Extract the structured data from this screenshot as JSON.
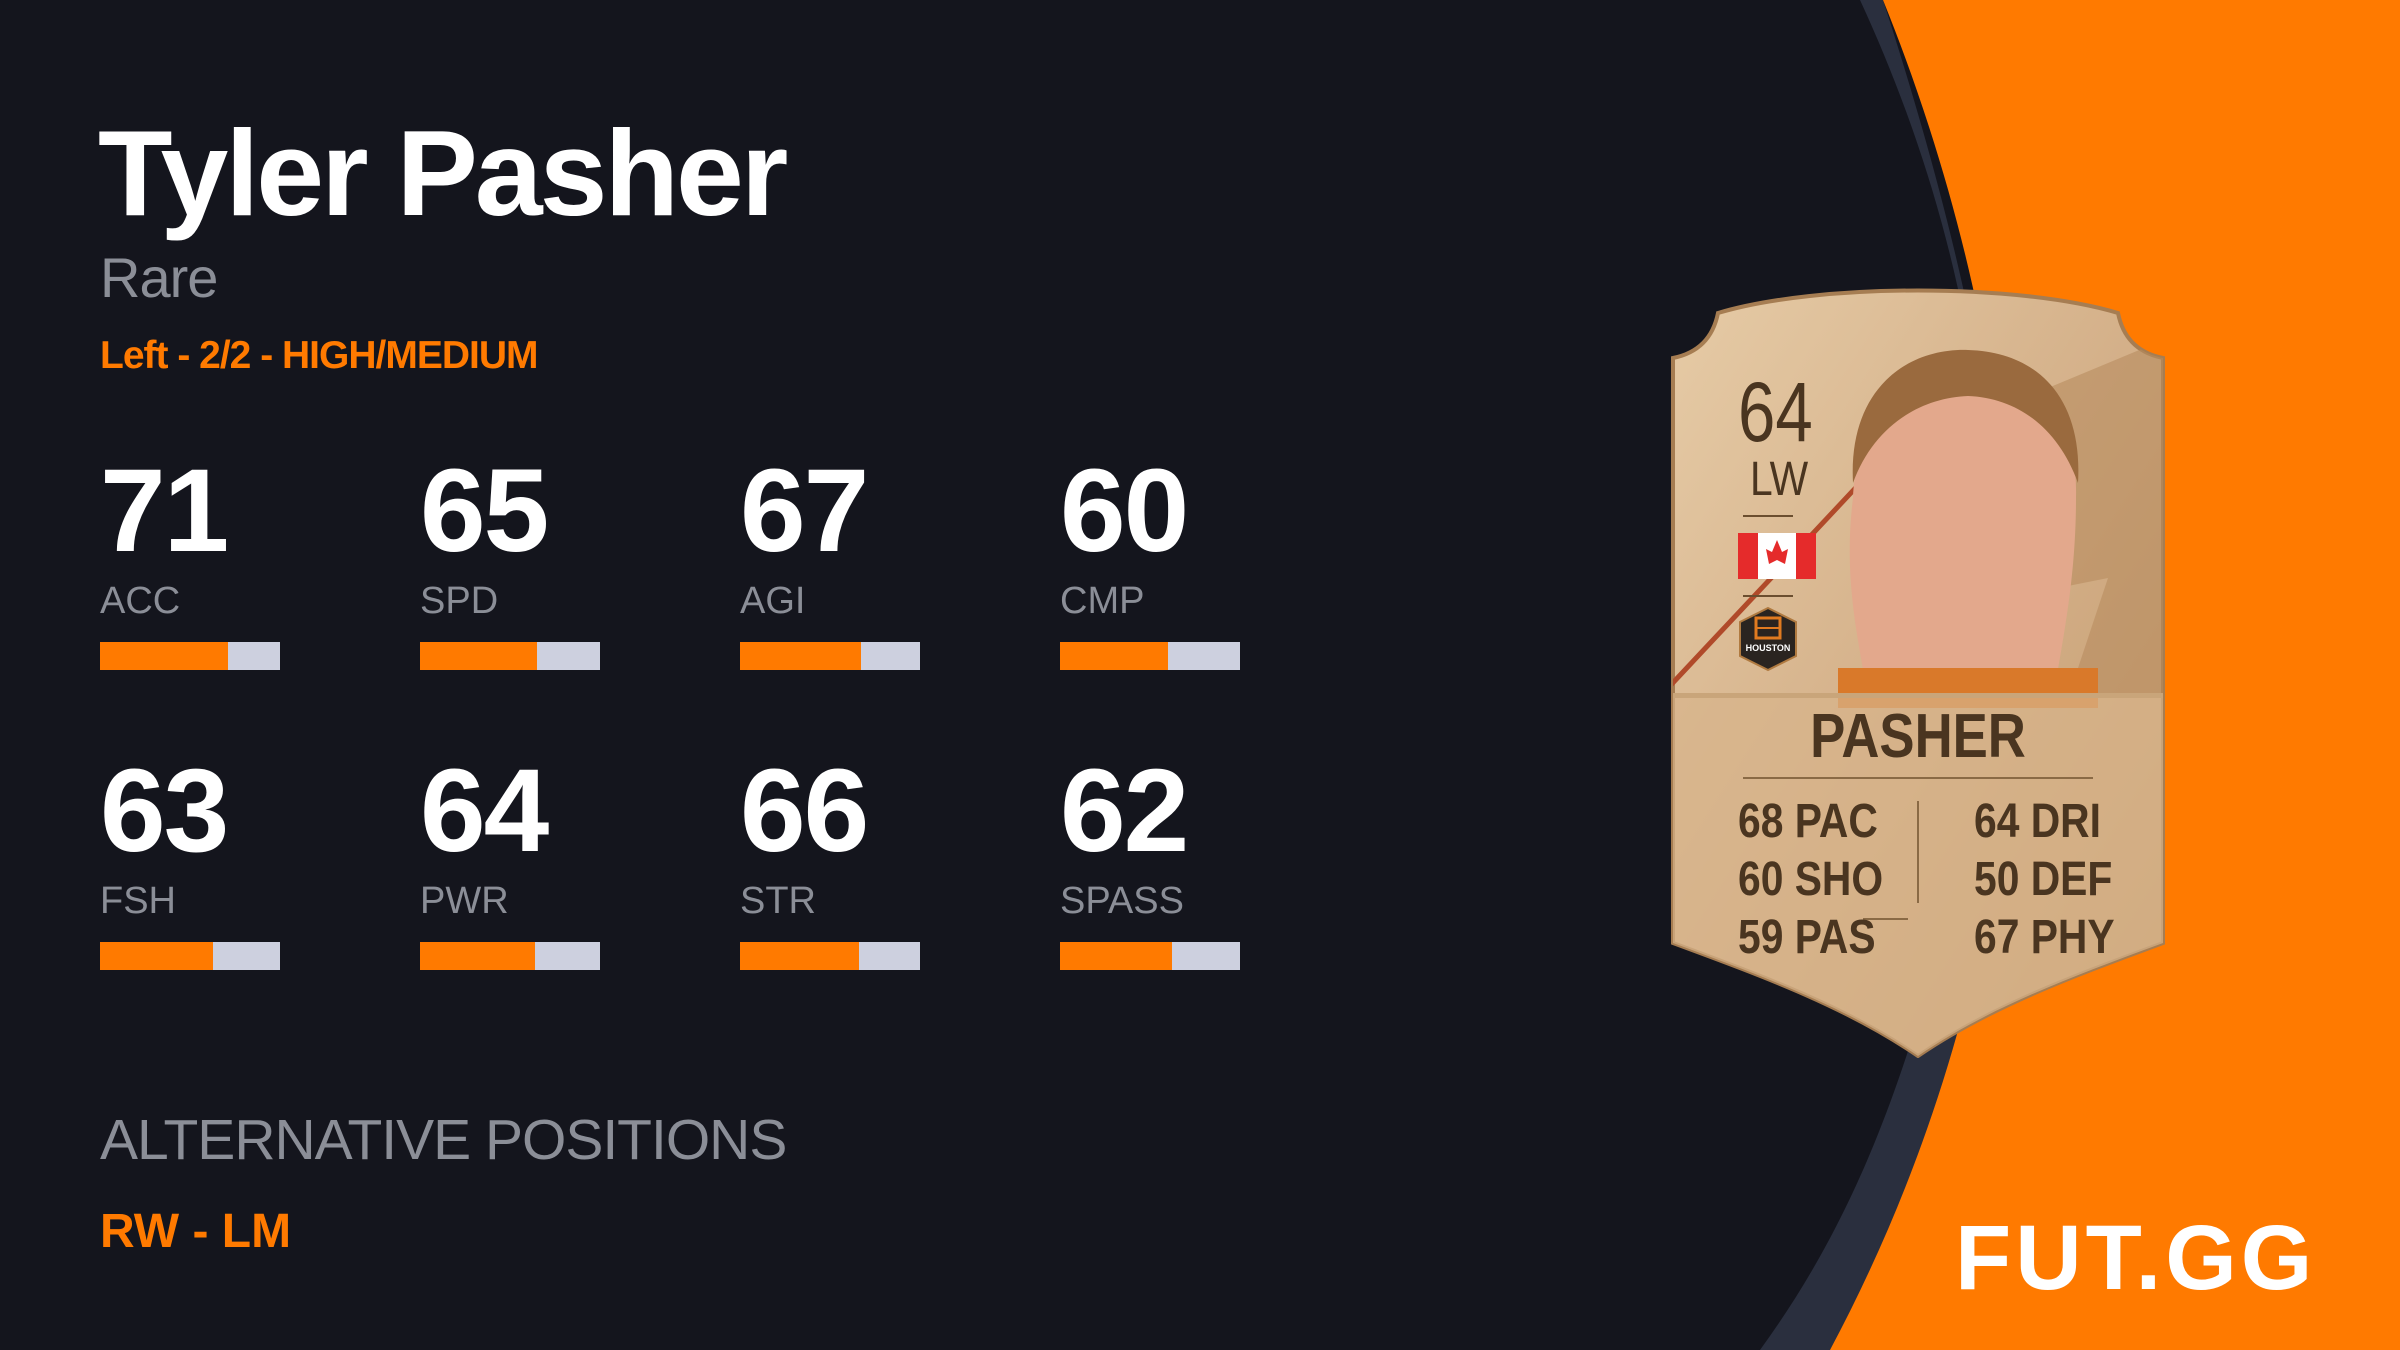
{
  "player": {
    "name": "Tyler Pasher",
    "rarity": "Rare",
    "details": "Left - 2/2 - HIGH/MEDIUM"
  },
  "stats": [
    {
      "label": "ACC",
      "value": 71
    },
    {
      "label": "SPD",
      "value": 65
    },
    {
      "label": "AGI",
      "value": 67
    },
    {
      "label": "CMP",
      "value": 60
    },
    {
      "label": "FSH",
      "value": 63
    },
    {
      "label": "PWR",
      "value": 64
    },
    {
      "label": "STR",
      "value": 66
    },
    {
      "label": "SPASS",
      "value": 62
    }
  ],
  "alternative_positions": {
    "heading": "ALTERNATIVE POSITIONS",
    "value": "RW - LM"
  },
  "card": {
    "rating": "64",
    "position": "LW",
    "name": "PASHER",
    "nation_flag": "canada-flag-icon",
    "club": "HOUSTON",
    "left_stats": [
      "68 PAC",
      "60 SHO",
      "59 PAS"
    ],
    "right_stats": [
      "64 DRI",
      "50 DEF",
      "67 PHY"
    ]
  },
  "brand": {
    "logo": "FUT.GG"
  },
  "colors": {
    "background": "#14151d",
    "accent": "#ff7a00",
    "bar_track": "#cdd0df",
    "muted_text": "#8b8e97",
    "card_gold": "#d8b88f"
  }
}
